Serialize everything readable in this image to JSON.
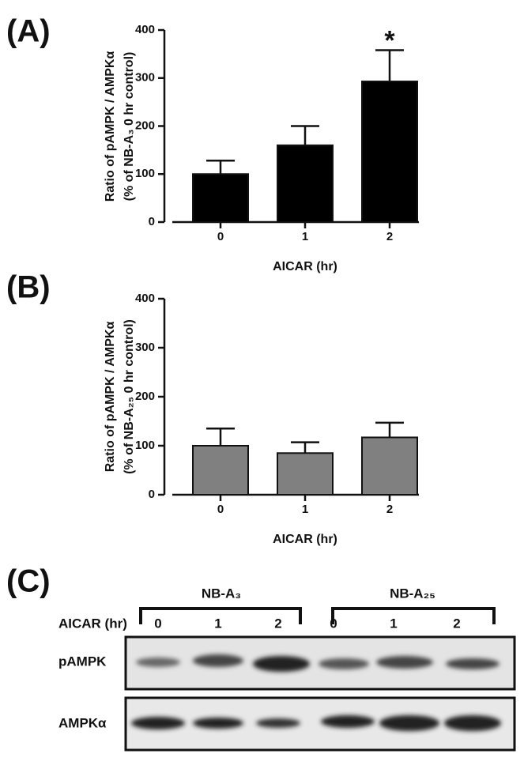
{
  "panel_labels": [
    "(A)",
    "(B)",
    "(C)"
  ],
  "chart_data": [
    {
      "type": "bar",
      "ylabel": [
        "Ratio of pAMPK / AMPKα",
        "(% of NB-A₃ 0 hr control)"
      ],
      "xlabel": "AICAR (hr)",
      "categories": [
        "0",
        "1",
        "2"
      ],
      "values": [
        100,
        160,
        293
      ],
      "errors": [
        28,
        40,
        65
      ],
      "color": "#000000",
      "ylim": [
        0,
        400
      ],
      "yticks": [
        0,
        100,
        200,
        300,
        400
      ],
      "annotations": [
        {
          "text": "*",
          "category": "2"
        }
      ]
    },
    {
      "type": "bar",
      "ylabel": [
        "Ratio of pAMPK / AMPKα",
        "(% of NB-A₂₅ 0 hr control)"
      ],
      "xlabel": "AICAR (hr)",
      "categories": [
        "0",
        "1",
        "2"
      ],
      "values": [
        100,
        85,
        117
      ],
      "errors": [
        35,
        22,
        30
      ],
      "color": "#808080",
      "ylim": [
        0,
        400
      ],
      "yticks": [
        0,
        100,
        200,
        300,
        400
      ]
    }
  ],
  "blot": {
    "groups": [
      "NB-A₃",
      "NB-A₂₅"
    ],
    "treatment_label": "AICAR (hr)",
    "lanes": [
      "0",
      "1",
      "2",
      "0",
      "1",
      "2"
    ],
    "rows": [
      "pAMPK",
      "AMPKα"
    ]
  }
}
